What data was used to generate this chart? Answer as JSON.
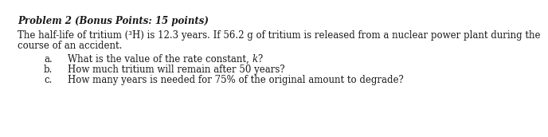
{
  "title": "Problem 2 (Bonus Points: 15 points)",
  "intro_line1": "The half-life of tritium (³H) is 12.3 years. If 56.2 g of tritium is released from a nuclear power plant during the",
  "intro_line2": "course of an accident.",
  "item_labels": [
    "a.",
    "b.",
    "c."
  ],
  "item_pre": [
    "What is the value of the rate constant, ",
    "How much tritium will remain after 50 years?",
    "How many years is needed for 75% of the original amount to degrade?"
  ],
  "item_italic": [
    "k",
    "",
    ""
  ],
  "item_post": [
    "?",
    "",
    ""
  ],
  "bg_color": "#ffffff",
  "text_color": "#1a1a1a",
  "title_fontsize": 8.5,
  "body_fontsize": 8.5,
  "item_fontsize": 8.5
}
